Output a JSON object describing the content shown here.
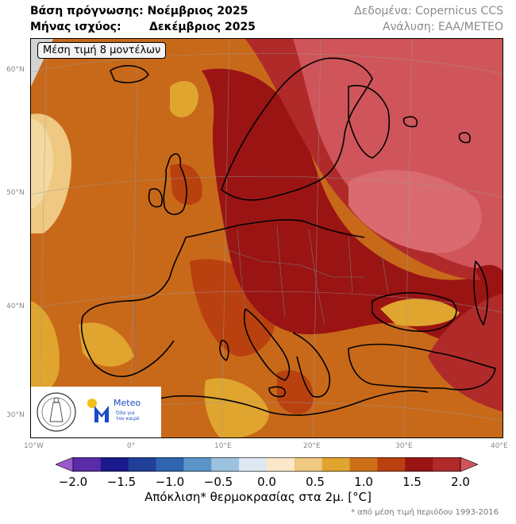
{
  "header": {
    "base_label": "Βάση πρόγνωσης:",
    "base_value": "Νοέμβριος 2025",
    "valid_label": "Μήνας ισχύος:",
    "valid_value": "Δεκέμβριος 2025",
    "data_source": "Δεδομένα: Copernicus CCS",
    "analysis": "Ανάλυση: ΕΑΑ/METEO"
  },
  "map": {
    "badge": "Μέση τιμή 8 μοντέλων",
    "lat_labels": [
      "60°N",
      "50°N",
      "40°N",
      "30°N"
    ],
    "lon_labels": [
      "10°W",
      "0°",
      "10°E",
      "20°E",
      "30°E",
      "40°E"
    ]
  },
  "logo": {
    "name": "Meteo",
    "tagline_1": "Όλα για",
    "tagline_2": "τον καιρό"
  },
  "colorbar": {
    "tick_labels": [
      "−2.0",
      "−1.5",
      "−1.0",
      "−0.5",
      "0.0",
      "0.5",
      "1.0",
      "1.5",
      "2.0"
    ],
    "colors": [
      "#9b59c9",
      "#5a2ca8",
      "#1a1a8c",
      "#1f3f99",
      "#2f64b0",
      "#5b95c8",
      "#9dc2e0",
      "#dde8f2",
      "#fbe8c8",
      "#efc882",
      "#e0a52e",
      "#cd6f17",
      "#b9410f",
      "#9a1414",
      "#b02a2a",
      "#d0555a"
    ],
    "label": "Απόκλιση* θερμοκρασίας στα 2μ. [°C]",
    "footnote": "* από μέση τιμή περιόδου 1993-2016"
  }
}
